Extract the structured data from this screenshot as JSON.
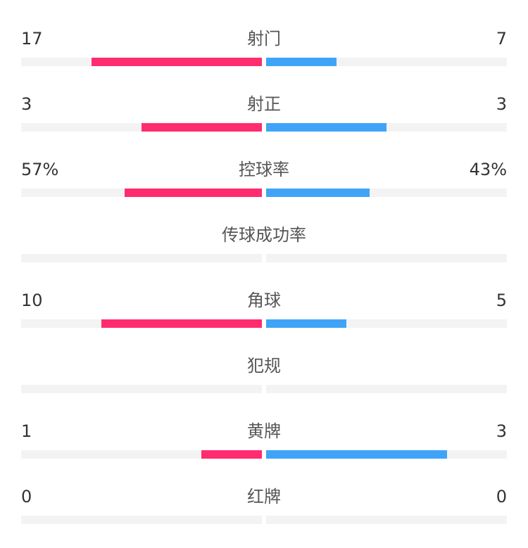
{
  "colors": {
    "home": "#ff2c6f",
    "away": "#3fa4f8",
    "track": "#f3f3f3"
  },
  "stats": [
    {
      "label": "射门",
      "home": "17",
      "away": "7",
      "home_ratio": 0.708,
      "away_ratio": 0.292
    },
    {
      "label": "射正",
      "home": "3",
      "away": "3",
      "home_ratio": 0.5,
      "away_ratio": 0.5
    },
    {
      "label": "控球率",
      "home": "57%",
      "away": "43%",
      "home_ratio": 0.57,
      "away_ratio": 0.43
    },
    {
      "label": "传球成功率",
      "home": "",
      "away": "",
      "home_ratio": 0,
      "away_ratio": 0
    },
    {
      "label": "角球",
      "home": "10",
      "away": "5",
      "home_ratio": 0.667,
      "away_ratio": 0.333
    },
    {
      "label": "犯规",
      "home": "",
      "away": "",
      "home_ratio": 0,
      "away_ratio": 0
    },
    {
      "label": "黄牌",
      "home": "1",
      "away": "3",
      "home_ratio": 0.25,
      "away_ratio": 0.75
    },
    {
      "label": "红牌",
      "home": "0",
      "away": "0",
      "home_ratio": 0,
      "away_ratio": 0
    }
  ]
}
